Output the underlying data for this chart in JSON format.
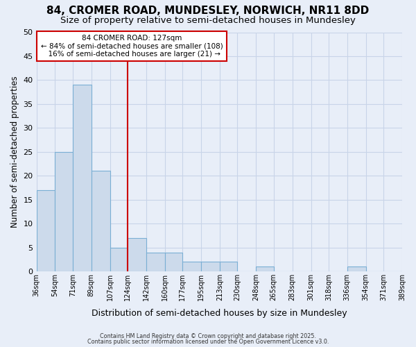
{
  "title": "84, CROMER ROAD, MUNDESLEY, NORWICH, NR11 8DD",
  "subtitle": "Size of property relative to semi-detached houses in Mundesley",
  "xlabel": "Distribution of semi-detached houses by size in Mundesley",
  "ylabel": "Number of semi-detached properties",
  "bar_values": [
    17,
    25,
    39,
    21,
    5,
    7,
    4,
    4,
    2,
    2,
    2,
    0,
    1,
    0,
    0,
    0,
    0,
    1,
    0,
    0
  ],
  "bin_edges": [
    36,
    54,
    71,
    89,
    107,
    124,
    142,
    160,
    177,
    195,
    213,
    230,
    248,
    265,
    283,
    301,
    318,
    336,
    354,
    371,
    389
  ],
  "tick_labels": [
    "36sqm",
    "54sqm",
    "71sqm",
    "89sqm",
    "107sqm",
    "124sqm",
    "142sqm",
    "160sqm",
    "177sqm",
    "195sqm",
    "213sqm",
    "230sqm",
    "248sqm",
    "265sqm",
    "283sqm",
    "301sqm",
    "318sqm",
    "336sqm",
    "354sqm",
    "371sqm",
    "389sqm"
  ],
  "bar_color": "#ccdaeb",
  "bar_edgecolor": "#7aafd4",
  "vline_x": 124,
  "vline_color": "#cc0000",
  "ann_line1": "84 CROMER ROAD: 127sqm",
  "ann_line2": "← 84% of semi-detached houses are smaller (108)",
  "ann_line3": "  16% of semi-detached houses are larger (21) →",
  "annotation_box_color": "#cc0000",
  "ylim": [
    0,
    50
  ],
  "yticks": [
    0,
    5,
    10,
    15,
    20,
    25,
    30,
    35,
    40,
    45,
    50
  ],
  "grid_color": "#c8d4e8",
  "bg_color": "#e8eef8",
  "fig_bg_color": "#e8eef8",
  "footer1": "Contains HM Land Registry data © Crown copyright and database right 2025.",
  "footer2": "Contains public sector information licensed under the Open Government Licence v3.0.",
  "title_fontsize": 11,
  "subtitle_fontsize": 9.5
}
